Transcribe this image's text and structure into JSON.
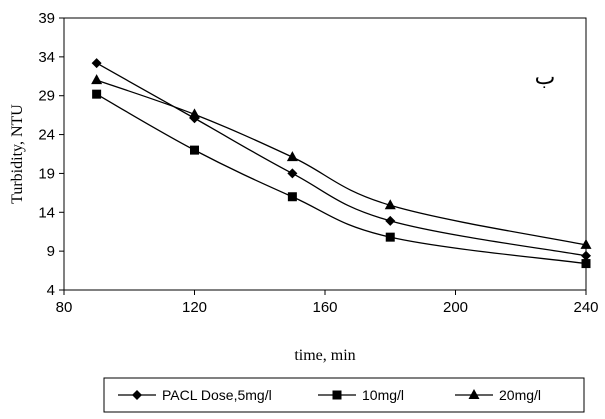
{
  "chart_data": {
    "type": "line",
    "xlabel": "time, min",
    "ylabel": "Turbidity, NTU",
    "xlim": [
      80,
      240
    ],
    "ylim": [
      4,
      39
    ],
    "x_ticks": [
      "80",
      "120",
      "160",
      "200",
      "240"
    ],
    "y_ticks": [
      "4",
      "9",
      "14",
      "19",
      "24",
      "29",
      "34",
      "39"
    ],
    "x": [
      90,
      120,
      150,
      180,
      240
    ],
    "annotation": "ب",
    "grid": false,
    "legend_position": "bottom",
    "series": [
      {
        "name": "PACL Dose,5mg/l",
        "marker": "diamond",
        "values": [
          33.2,
          26.1,
          19.0,
          12.9,
          8.4
        ]
      },
      {
        "name": "10mg/l",
        "marker": "square",
        "values": [
          29.2,
          22.0,
          16.0,
          10.8,
          7.4
        ]
      },
      {
        "name": "20mg/l",
        "marker": "triangle",
        "values": [
          31.0,
          26.6,
          21.1,
          14.9,
          9.8
        ]
      }
    ],
    "line_color": "#000000"
  }
}
